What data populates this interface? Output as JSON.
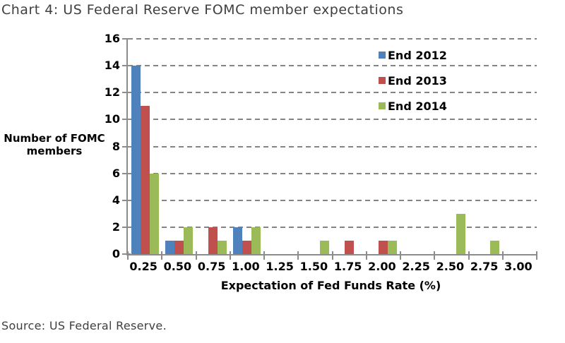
{
  "title": "Chart 4: US Federal Reserve FOMC member expectations",
  "source": "Source: US Federal Reserve.",
  "chart_data": {
    "type": "bar",
    "title": "Chart 4: US Federal Reserve FOMC member expectations",
    "categories": [
      "0.25",
      "0.50",
      "0.75",
      "1.00",
      "1.25",
      "1.50",
      "1.75",
      "2.00",
      "2.25",
      "2.50",
      "2.75",
      "3.00"
    ],
    "series": [
      {
        "name": "End 2012",
        "color": "#4F81BD",
        "values": [
          14,
          1,
          0,
          2,
          0,
          0,
          0,
          0,
          0,
          0,
          0,
          0
        ]
      },
      {
        "name": "End 2013",
        "color": "#C0504D",
        "values": [
          11,
          1,
          2,
          1,
          0,
          0,
          1,
          1,
          0,
          0,
          0,
          0
        ]
      },
      {
        "name": "End 2014",
        "color": "#9BBB59",
        "values": [
          6,
          2,
          1,
          2,
          0,
          1,
          0,
          1,
          0,
          3,
          1,
          0
        ]
      }
    ],
    "xlabel": "Expectation of Fed Funds Rate (%)",
    "ylabel_lines": [
      "Number of FOMC",
      "members"
    ],
    "ylim": [
      0,
      16
    ],
    "ytick_step": 2,
    "ytick_labels": [
      "0",
      "2",
      "4",
      "6",
      "8",
      "10",
      "12",
      "14",
      "16"
    ],
    "grid": "horizontal-dashed",
    "grid_color": "#848484",
    "axis_color": "#8C8C8C",
    "title_color": "#3F3F3F",
    "legend_position": "inside-top-right"
  }
}
